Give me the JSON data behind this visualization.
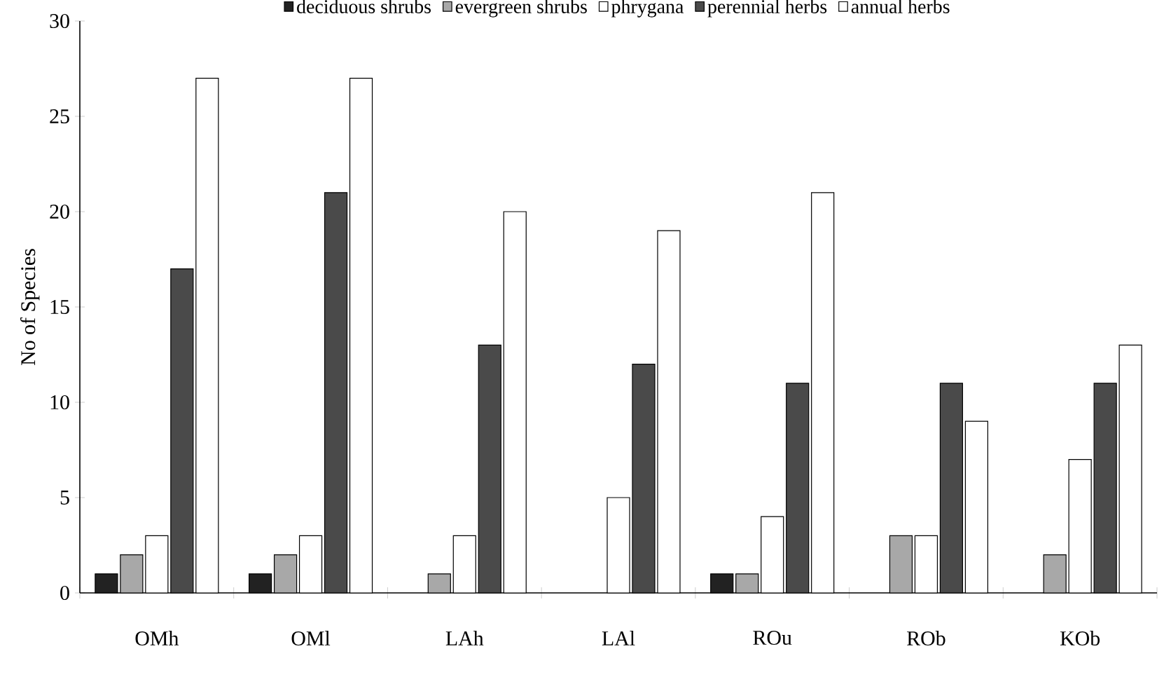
{
  "chart_data": {
    "type": "bar",
    "ylabel": "No of Species",
    "categories": [
      "OMh",
      "OMl",
      "LAh",
      "LAl",
      "ROu",
      "ROb",
      "KOb"
    ],
    "series": [
      {
        "name": "deciduous shrubs",
        "color": "#222222",
        "values": [
          1,
          1,
          0,
          0,
          1,
          0,
          0
        ]
      },
      {
        "name": "evergreen shrubs",
        "color": "#a8a8a8",
        "values": [
          2,
          2,
          1,
          0,
          1,
          3,
          2
        ]
      },
      {
        "name": "phrygana",
        "color": "#ffffff",
        "values": [
          3,
          3,
          3,
          5,
          4,
          3,
          7
        ]
      },
      {
        "name": "perennial herbs",
        "color": "#4a4a4a",
        "values": [
          17,
          21,
          13,
          12,
          11,
          11,
          11
        ]
      },
      {
        "name": "annual herbs",
        "color": "#ffffff",
        "values": [
          27,
          27,
          20,
          19,
          21,
          9,
          13
        ]
      }
    ],
    "ylim": [
      0,
      30
    ],
    "yticks": [
      0,
      5,
      10,
      15,
      20,
      25,
      30
    ],
    "grid": false,
    "legend": "top"
  }
}
